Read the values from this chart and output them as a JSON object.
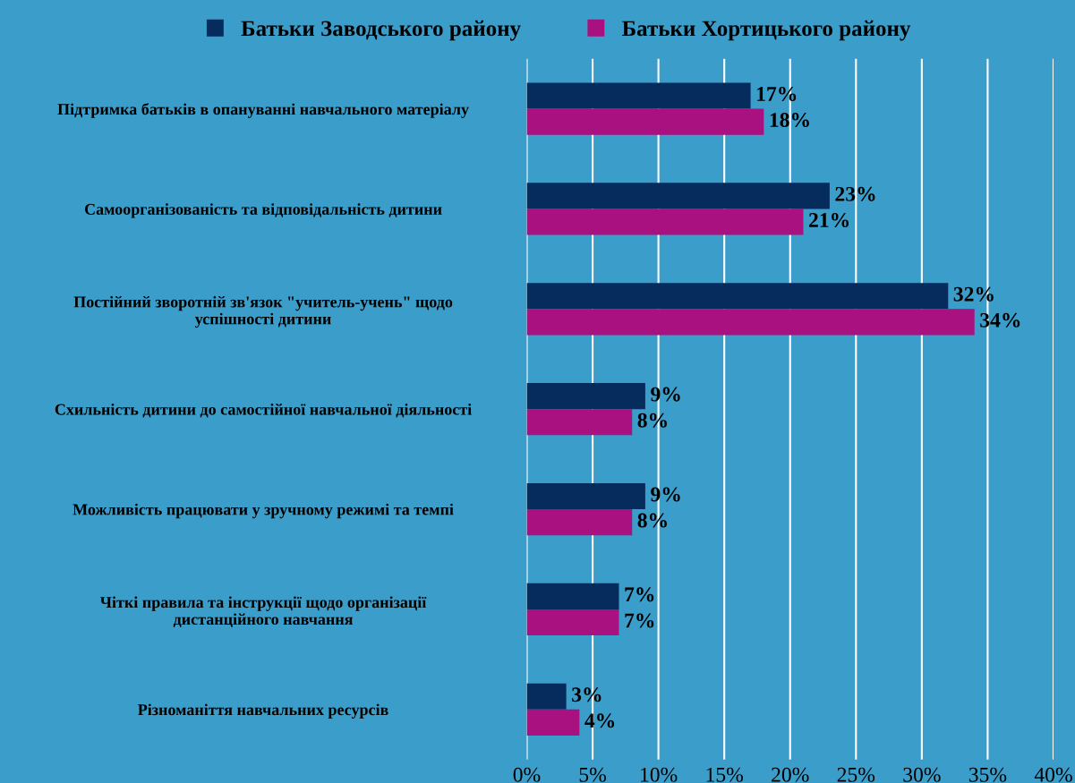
{
  "chart_data": {
    "type": "bar",
    "orientation": "horizontal",
    "categories": [
      "Підтримка батьків в опануванні навчального матеріалу",
      "Самоорганізованість та відповідальність дитини",
      "Постійний зворотній зв'язок \"учитель-учень\" щодо\nуспішності дитини",
      "Схильність дитини до самостійної навчальної діяльності",
      "Можливість працювати у зручному режимі та темпі",
      "Чіткі правила та інструкції щодо організації\nдистанційного навчання",
      "Різноманіття навчальних ресурсів"
    ],
    "series": [
      {
        "name": "Батьки Заводського району",
        "color": "#062c5e",
        "values": [
          17,
          23,
          32,
          9,
          9,
          7,
          3
        ],
        "value_labels": [
          "17%",
          "23%",
          "32%",
          "9%",
          "9%",
          "7%",
          "3%"
        ]
      },
      {
        "name": "Батьки Хортицького району",
        "color": "#a8117f",
        "values": [
          18,
          21,
          34,
          8,
          8,
          7,
          4
        ],
        "value_labels": [
          "18%",
          "21%",
          "34%",
          "8%",
          "8%",
          "7%",
          "4%"
        ]
      }
    ],
    "xlim": [
      0,
      40
    ],
    "xticks": [
      {
        "value": 0,
        "label": "0%"
      },
      {
        "value": 5,
        "label": "5%"
      },
      {
        "value": 10,
        "label": "10%"
      },
      {
        "value": 15,
        "label": "15%"
      },
      {
        "value": 20,
        "label": "20%"
      },
      {
        "value": 25,
        "label": "25%"
      },
      {
        "value": 30,
        "label": "30%"
      },
      {
        "value": 35,
        "label": "35%"
      },
      {
        "value": 40,
        "label": "40%"
      }
    ],
    "grid": "x",
    "legend": "top"
  }
}
